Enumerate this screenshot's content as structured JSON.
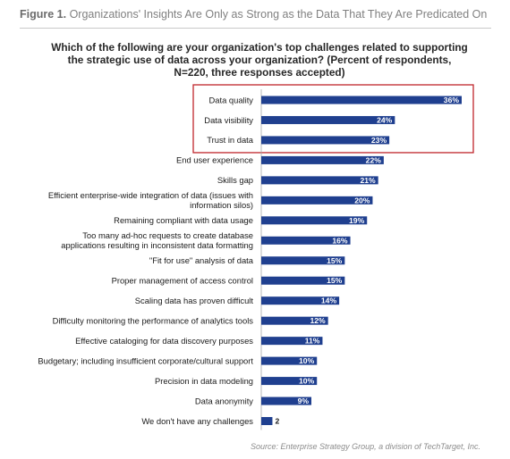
{
  "figure": {
    "label": "Figure 1.",
    "caption": "Organizations' Insights Are Only as Strong as the Data That They Are Predicated On"
  },
  "source": "Source: Enterprise Strategy Group, a division of TechTarget, Inc.",
  "colors": {
    "bar": "#1f3f8f",
    "highlight_box": "#c0272d",
    "caption": "#808080"
  },
  "chart_data": {
    "type": "bar",
    "orientation": "horizontal",
    "title": "Which of the following are your organization's top challenges related to supporting the strategic use of data across your organization? (Percent of respondents, N=220, three responses accepted)",
    "categories": [
      "Data quality",
      "Data visibility",
      "Trust in data",
      "End user experience",
      "Skills gap",
      "Efficient enterprise-wide integration of data (issues with information silos)",
      "Remaining compliant with data usage",
      "Too many ad-hoc requests to create database applications resulting in inconsistent data formatting",
      "\"Fit for use\" analysis of data",
      "Proper management of access control",
      "Scaling data has proven difficult",
      "Difficulty monitoring the performance of analytics tools",
      "Effective cataloging for data discovery purposes",
      "Budgetary; including insufficient corporate/cultural support",
      "Precision in data modeling",
      "Data anonymity",
      "We don't have any challenges"
    ],
    "category_lines": [
      [
        "Data quality"
      ],
      [
        "Data visibility"
      ],
      [
        "Trust in data"
      ],
      [
        "End user experience"
      ],
      [
        "Skills gap"
      ],
      [
        "Efficient enterprise-wide integration of data (issues with",
        "information silos)"
      ],
      [
        "Remaining compliant with data usage"
      ],
      [
        "Too many ad-hoc requests to create database",
        "applications resulting in inconsistent data formatting"
      ],
      [
        "\"Fit for use\" analysis of data"
      ],
      [
        "Proper management of access control"
      ],
      [
        "Scaling data has proven difficult"
      ],
      [
        "Difficulty monitoring the performance of analytics tools"
      ],
      [
        "Effective cataloging for data discovery purposes"
      ],
      [
        "Budgetary; including insufficient corporate/cultural support"
      ],
      [
        "Precision in data modeling"
      ],
      [
        "Data anonymity"
      ],
      [
        "We don't have any challenges"
      ]
    ],
    "values": [
      36,
      24,
      23,
      22,
      21,
      20,
      19,
      16,
      15,
      15,
      14,
      12,
      11,
      10,
      10,
      9,
      2
    ],
    "value_labels": [
      "36%",
      "24%",
      "23%",
      "22%",
      "21%",
      "20%",
      "19%",
      "16%",
      "15%",
      "15%",
      "14%",
      "12%",
      "11%",
      "10%",
      "10%",
      "9%",
      "2"
    ],
    "highlighted": [
      "Data quality",
      "Data visibility",
      "Trust in data"
    ],
    "xlim": [
      0,
      36
    ],
    "grid": false,
    "legend": "none"
  }
}
